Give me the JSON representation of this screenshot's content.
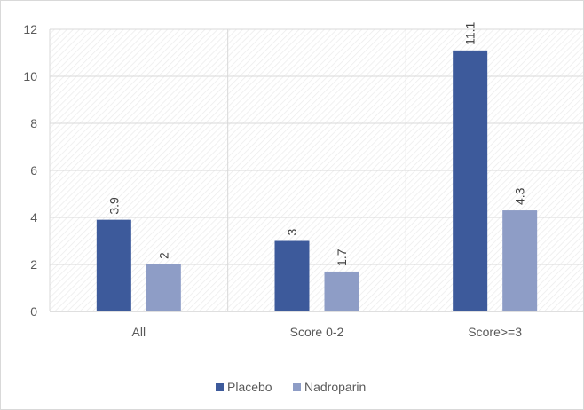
{
  "chart_data": {
    "type": "bar",
    "categories": [
      "All",
      "Score 0-2",
      "Score>=3"
    ],
    "series": [
      {
        "name": "Placebo",
        "values": [
          3.9,
          3,
          11.1
        ],
        "color": "#3d5a9b"
      },
      {
        "name": "Nadroparin",
        "values": [
          2,
          1.7,
          4.3
        ],
        "color": "#8e9dc6"
      }
    ],
    "data_labels": [
      [
        "3.9",
        "3",
        "11.1"
      ],
      [
        "2",
        "1.7",
        "4.3"
      ]
    ],
    "ylim": [
      0,
      12
    ],
    "yticks": [
      "0",
      "2",
      "4",
      "6",
      "8",
      "10",
      "12"
    ],
    "grid": true,
    "legend_position": "bottom"
  }
}
